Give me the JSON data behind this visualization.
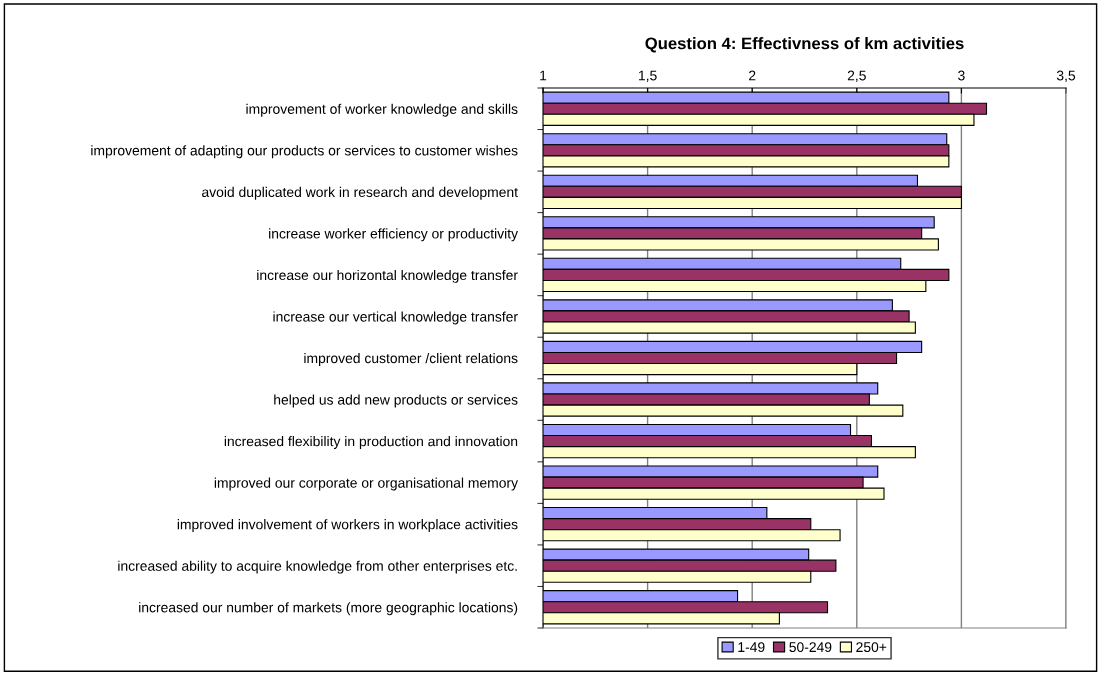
{
  "chart_data": {
    "type": "bar",
    "orientation": "horizontal",
    "title": "Question 4: Effectivness of km activities",
    "categories": [
      "improvement of worker knowledge and skills",
      "improvement of adapting our products or services to customer wishes",
      "avoid duplicated work in research and development",
      "increase worker efficiency or productivity",
      "increase our horizontal knowledge transfer",
      "increase our vertical knowledge transfer",
      "improved customer /client relations",
      "helped us add new products or services",
      "increased flexibility in production and innovation",
      "improved our corporate or organisational memory",
      "improved involvement of workers in workplace activities",
      "increased ability to acquire knowledge from other enterprises etc.",
      "increased our number of markets (more geographic locations)"
    ],
    "series": [
      {
        "name": "1-49",
        "color": "#9999ff",
        "values": [
          2.94,
          2.93,
          2.79,
          2.87,
          2.71,
          2.67,
          2.81,
          2.6,
          2.47,
          2.6,
          2.07,
          2.27,
          1.93
        ]
      },
      {
        "name": "50-249",
        "color": "#993366",
        "values": [
          3.12,
          2.94,
          3.0,
          2.81,
          2.94,
          2.75,
          2.69,
          2.56,
          2.57,
          2.53,
          2.28,
          2.4,
          2.36
        ]
      },
      {
        "name": "250+",
        "color": "#ffffcc",
        "values": [
          3.06,
          2.94,
          3.0,
          2.89,
          2.83,
          2.78,
          2.5,
          2.72,
          2.78,
          2.63,
          2.42,
          2.28,
          2.13
        ]
      }
    ],
    "xlim": [
      1,
      3.5
    ],
    "xticks": [
      {
        "value": 1,
        "label": "1"
      },
      {
        "value": 1.5,
        "label": "1,5"
      },
      {
        "value": 2,
        "label": "2"
      },
      {
        "value": 2.5,
        "label": "2,5"
      },
      {
        "value": 3,
        "label": "3"
      },
      {
        "value": 3.5,
        "label": "3,5"
      }
    ],
    "grid": "x",
    "legend": "bottom"
  }
}
